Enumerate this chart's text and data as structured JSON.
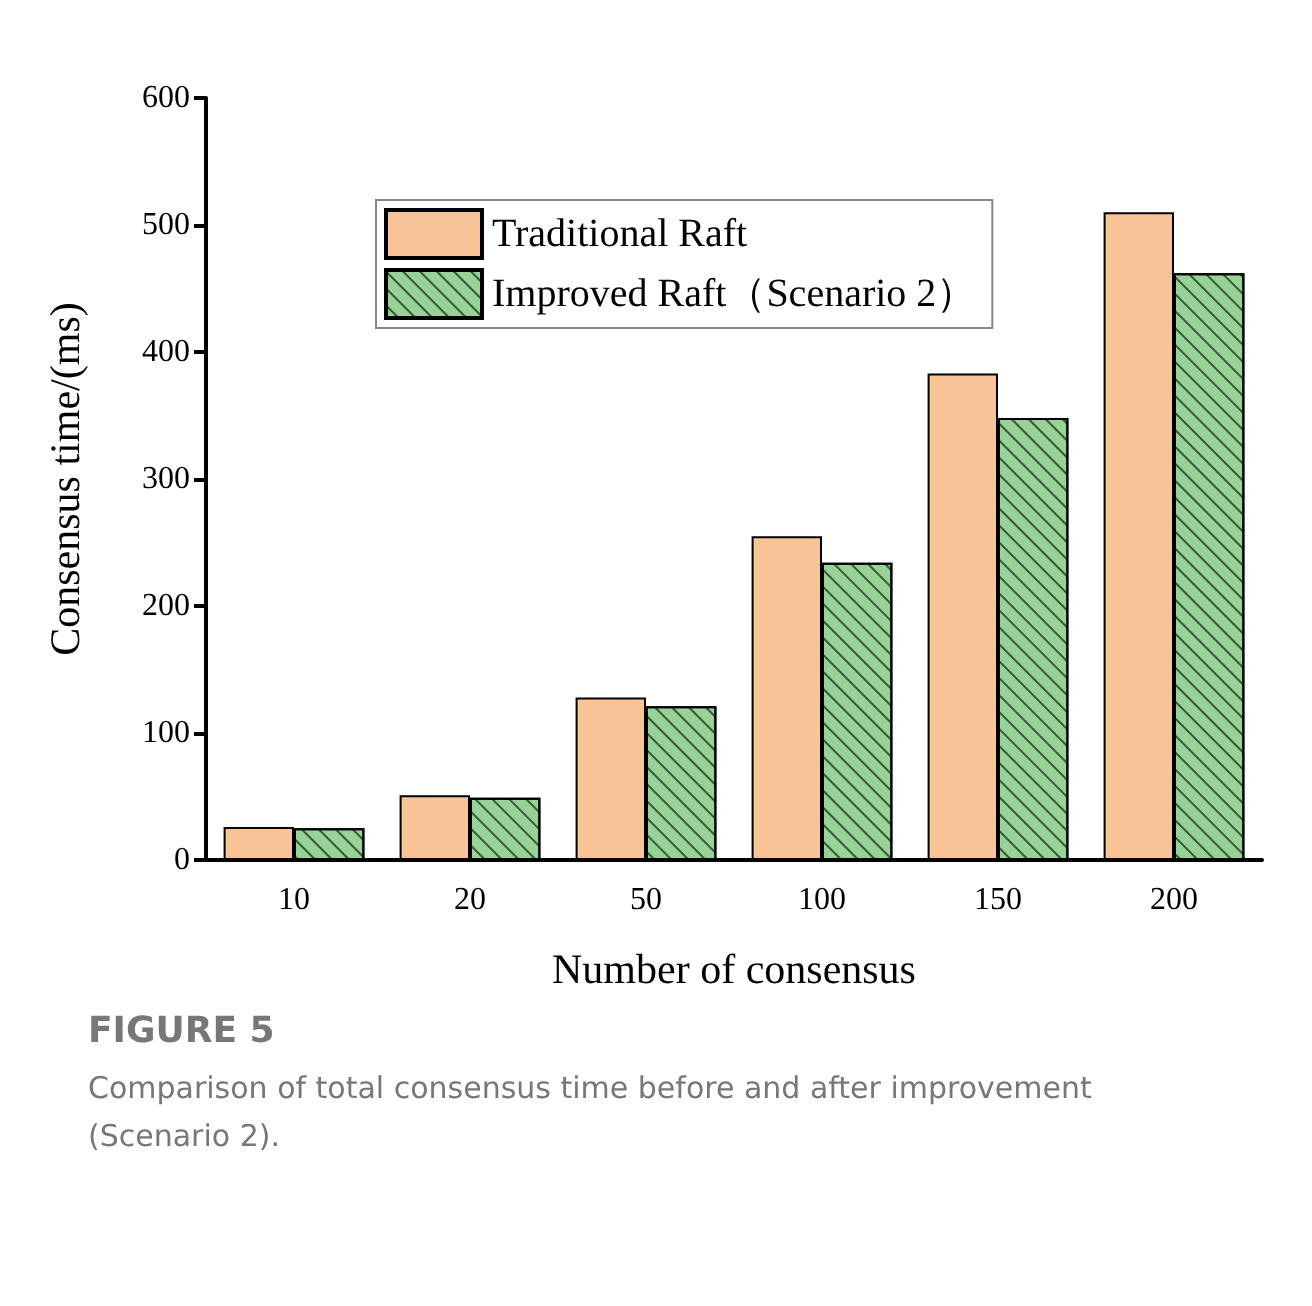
{
  "chart_data": {
    "type": "bar",
    "xlabel": "Number of consensus",
    "ylabel": "Consensus time/(ms)",
    "categories": [
      "10",
      "20",
      "50",
      "100",
      "150",
      "200"
    ],
    "series": [
      {
        "name": "Traditional Raft",
        "color": "#f8c496",
        "values": [
          26,
          51,
          128,
          255,
          383,
          510
        ]
      },
      {
        "name": "Improved Raft（Scenario 2）",
        "color": "#96d496",
        "values": [
          25,
          49,
          121,
          234,
          348,
          462
        ]
      }
    ],
    "ylim": [
      0,
      600
    ],
    "yticks": [
      0,
      100,
      200,
      300,
      400,
      500,
      600
    ],
    "grid": false,
    "legend": "top",
    "annotations": [
      "FIGURE 5",
      "Comparison of total consensus time before and after improvement (Scenario 2)."
    ]
  }
}
